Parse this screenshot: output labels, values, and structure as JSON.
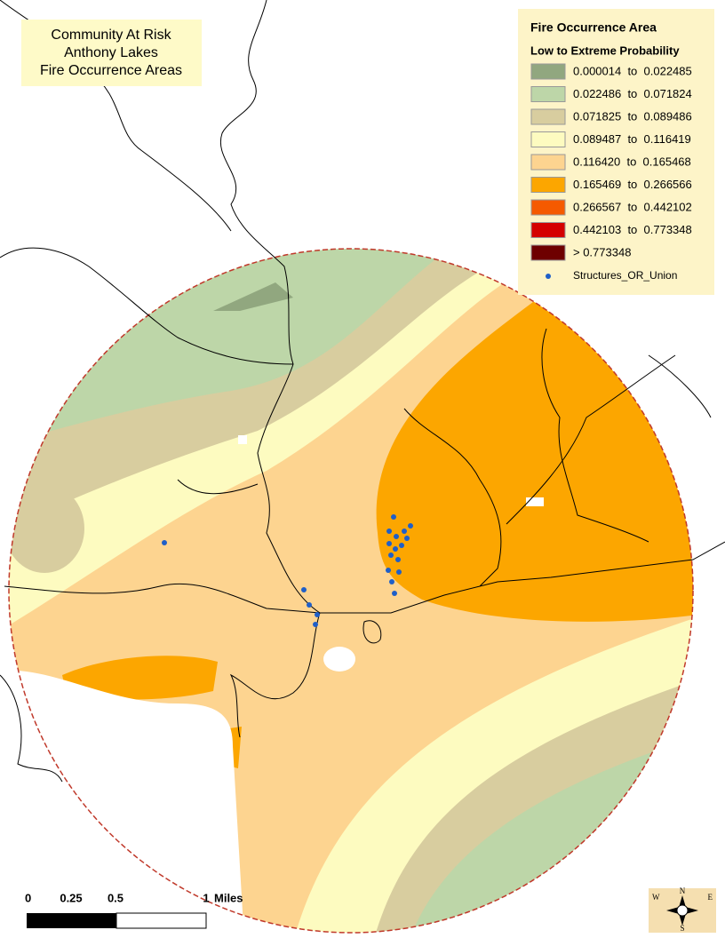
{
  "title_box": {
    "lines": [
      "Community At Risk",
      "Anthony Lakes",
      "Fire Occurrence Areas"
    ]
  },
  "legend": {
    "title": "Fire Occurrence Area",
    "subtitle": "Low to Extreme Probability",
    "classes": [
      {
        "label": "0.000014  to  0.022485",
        "color": "#91a77f"
      },
      {
        "label": "0.022486  to  0.071824",
        "color": "#bdd6a8"
      },
      {
        "label": "0.071825  to  0.089486",
        "color": "#d8cd9f"
      },
      {
        "label": "0.089487  to  0.116419",
        "color": "#fdfbc0"
      },
      {
        "label": "0.116420  to  0.165468",
        "color": "#fdd490"
      },
      {
        "label": "0.165469  to  0.266566",
        "color": "#fca600"
      },
      {
        "label": "0.266567  to  0.442102",
        "color": "#f55a00"
      },
      {
        "label": "0.442103  to  0.773348",
        "color": "#d40000"
      },
      {
        "label": "> 0.773348",
        "color": "#6e0000"
      }
    ],
    "structures": {
      "label": "Structures_OR_Union",
      "color": "#1f5fc8"
    }
  },
  "scale_bar": {
    "labels": [
      "0",
      "0.25",
      "0.5",
      "1"
    ],
    "unit": "Miles"
  },
  "compass": {
    "n": "N",
    "s": "S",
    "e": "E",
    "w": "W"
  }
}
